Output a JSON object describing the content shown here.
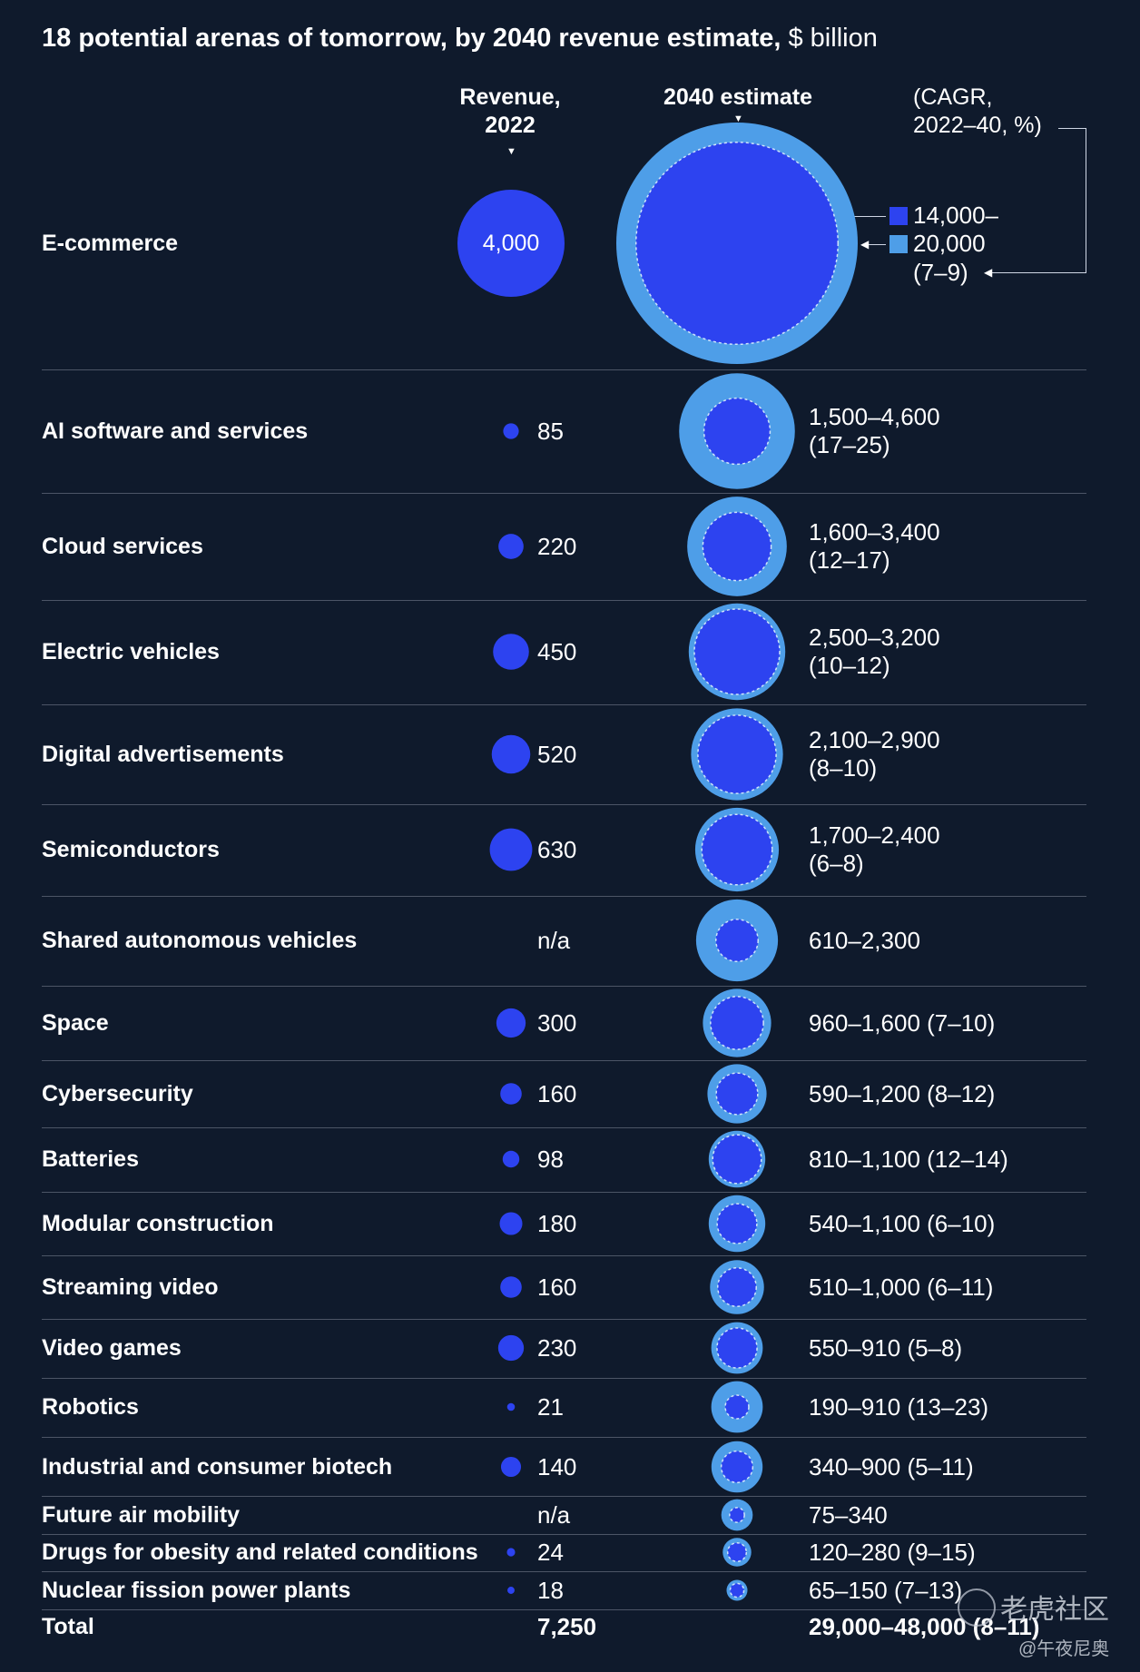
{
  "title": {
    "bold": "18 potential arenas of tomorrow, by 2040 revenue estimate,",
    "unit": " $ billion"
  },
  "headers": {
    "revenue_2022": [
      "Revenue,",
      "2022"
    ],
    "estimate_2040": "2040 estimate",
    "cagr": [
      "(CAGR,",
      "2022–40, %)"
    ]
  },
  "legend": {
    "low_label": "14,000–",
    "high_label": "20,000",
    "cagr_label": "(7–9)"
  },
  "colors": {
    "background": "#0f1a2c",
    "revenue_2022": "#2d43f0",
    "estimate_low": "#2d43f0",
    "estimate_high": "#4e9ee8",
    "separator": "#4c5566"
  },
  "chart_data": {
    "type": "bubble",
    "title": "18 potential arenas of tomorrow, by 2040 revenue estimate, $ billion",
    "unit": "$ billion",
    "columns": [
      "Revenue, 2022",
      "2040 estimate (CAGR, 2022–40, %)"
    ],
    "rows": [
      {
        "arena": "E-commerce",
        "revenue_2022": 4000,
        "revenue_2022_label": "4,000",
        "est_low": 14000,
        "est_high": 20000,
        "estimate_label": "",
        "cagr": "7–9"
      },
      {
        "arena": "AI software and services",
        "revenue_2022": 85,
        "revenue_2022_label": "85",
        "est_low": 1500,
        "est_high": 4600,
        "estimate_label": "1,500–4,600",
        "cagr_label": "(17–25)"
      },
      {
        "arena": "Cloud services",
        "revenue_2022": 220,
        "revenue_2022_label": "220",
        "est_low": 1600,
        "est_high": 3400,
        "estimate_label": "1,600–3,400",
        "cagr_label": "(12–17)"
      },
      {
        "arena": "Electric vehicles",
        "revenue_2022": 450,
        "revenue_2022_label": "450",
        "est_low": 2500,
        "est_high": 3200,
        "estimate_label": "2,500–3,200",
        "cagr_label": "(10–12)"
      },
      {
        "arena": "Digital advertisements",
        "revenue_2022": 520,
        "revenue_2022_label": "520",
        "est_low": 2100,
        "est_high": 2900,
        "estimate_label": "2,100–2,900",
        "cagr_label": "(8–10)"
      },
      {
        "arena": "Semiconductors",
        "revenue_2022": 630,
        "revenue_2022_label": "630",
        "est_low": 1700,
        "est_high": 2400,
        "estimate_label": "1,700–2,400",
        "cagr_label": "(6–8)"
      },
      {
        "arena": "Shared autonomous vehicles",
        "revenue_2022": null,
        "revenue_2022_label": "n/a",
        "est_low": 610,
        "est_high": 2300,
        "estimate_label": "610–2,300",
        "cagr_label": ""
      },
      {
        "arena": "Space",
        "revenue_2022": 300,
        "revenue_2022_label": "300",
        "est_low": 960,
        "est_high": 1600,
        "estimate_label": "960–1,600 (7–10)",
        "cagr_label": ""
      },
      {
        "arena": "Cybersecurity",
        "revenue_2022": 160,
        "revenue_2022_label": "160",
        "est_low": 590,
        "est_high": 1200,
        "estimate_label": "590–1,200 (8–12)",
        "cagr_label": ""
      },
      {
        "arena": "Batteries",
        "revenue_2022": 98,
        "revenue_2022_label": "98",
        "est_low": 810,
        "est_high": 1100,
        "estimate_label": "810–1,100 (12–14)",
        "cagr_label": ""
      },
      {
        "arena": "Modular construction",
        "revenue_2022": 180,
        "revenue_2022_label": "180",
        "est_low": 540,
        "est_high": 1100,
        "estimate_label": "540–1,100 (6–10)",
        "cagr_label": ""
      },
      {
        "arena": "Streaming video",
        "revenue_2022": 160,
        "revenue_2022_label": "160",
        "est_low": 510,
        "est_high": 1000,
        "estimate_label": "510–1,000 (6–11)",
        "cagr_label": ""
      },
      {
        "arena": "Video games",
        "revenue_2022": 230,
        "revenue_2022_label": "230",
        "est_low": 550,
        "est_high": 910,
        "estimate_label": "550–910 (5–8)",
        "cagr_label": ""
      },
      {
        "arena": "Robotics",
        "revenue_2022": 21,
        "revenue_2022_label": "21",
        "est_low": 190,
        "est_high": 910,
        "estimate_label": "190–910 (13–23)",
        "cagr_label": ""
      },
      {
        "arena": "Industrial and consumer biotech",
        "revenue_2022": 140,
        "revenue_2022_label": "140",
        "est_low": 340,
        "est_high": 900,
        "estimate_label": "340–900 (5–11)",
        "cagr_label": ""
      },
      {
        "arena": "Future air mobility",
        "revenue_2022": null,
        "revenue_2022_label": "n/a",
        "est_low": 75,
        "est_high": 340,
        "estimate_label": "75–340",
        "cagr_label": ""
      },
      {
        "arena": "Drugs for obesity and related conditions",
        "revenue_2022": 24,
        "revenue_2022_label": "24",
        "est_low": 120,
        "est_high": 280,
        "estimate_label": "120–280 (9–15)",
        "cagr_label": ""
      },
      {
        "arena": "Nuclear fission power plants",
        "revenue_2022": 18,
        "revenue_2022_label": "18",
        "est_low": 65,
        "est_high": 150,
        "estimate_label": "65–150 (7–13)",
        "cagr_label": ""
      }
    ],
    "total": {
      "label": "Total",
      "revenue_2022_label": "7,250",
      "estimate_label": "29,000–48,000 (8–11)"
    }
  },
  "watermark": {
    "brand": "老虎社区",
    "handle": "@午夜尼奥"
  }
}
